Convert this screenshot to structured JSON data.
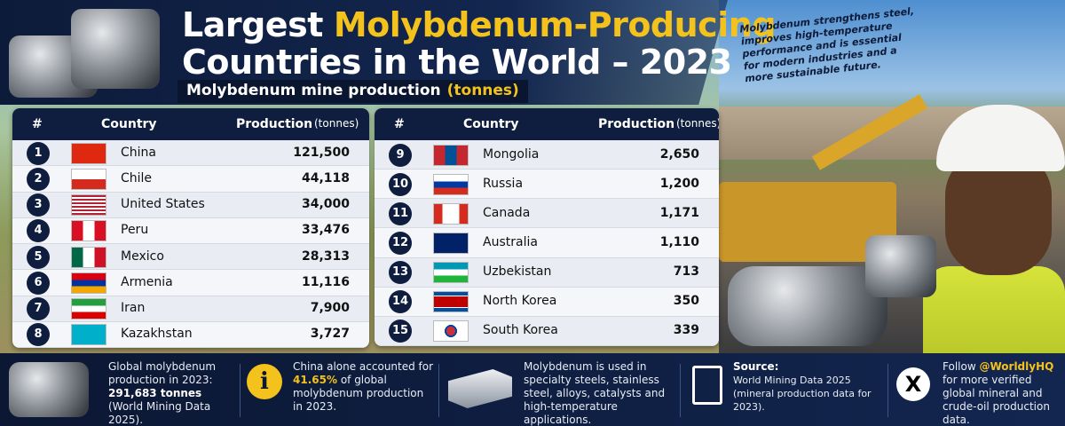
{
  "header": {
    "title_line1": [
      "Largest",
      "Molybdenum-Producing"
    ],
    "title_line2": "Countries in the World – 2023",
    "subtitle": [
      "Molybdenum mine production",
      "(tonnes)"
    ],
    "note": "Molybdenum strengthens steel, improves high-temperature performance and is essential for modern industries and a more sustainable future."
  },
  "tables": [
    {
      "columns": [
        "#",
        "Country",
        "Production",
        "(tonnes)"
      ],
      "rows": [
        [
          "1",
          "China",
          "121,500"
        ],
        [
          "2",
          "Chile",
          "44,118"
        ],
        [
          "3",
          "United States",
          "34,000"
        ],
        [
          "4",
          "Peru",
          "33,476"
        ],
        [
          "5",
          "Mexico",
          "28,313"
        ],
        [
          "6",
          "Armenia",
          "11,116"
        ],
        [
          "7",
          "Iran",
          "7,900"
        ],
        [
          "8",
          "Kazakhstan",
          "3,727"
        ]
      ]
    },
    {
      "columns": [
        "#",
        "Country",
        "Production",
        "(tonnes)"
      ],
      "rows": [
        [
          "9",
          "Mongolia",
          "2,650"
        ],
        [
          "10",
          "Russia",
          "1,200"
        ],
        [
          "11",
          "Canada",
          "1,171"
        ],
        [
          "12",
          "Australia",
          "1,110"
        ],
        [
          "13",
          "Uzbekistan",
          "713"
        ],
        [
          "14",
          "North Korea",
          "350"
        ],
        [
          "15",
          "South Korea",
          "339"
        ]
      ]
    }
  ],
  "footer": [
    [
      "Global molybdenum production in 2023:",
      "291,683 tonnes",
      "(World Mining Data 2025)."
    ],
    [
      "China alone accounted for",
      "41.65%",
      "of global molybdenum production in 2023."
    ],
    [
      "Molybdenum is used in specialty steels, stainless steel, alloys, catalysts and high-temperature applications."
    ],
    [
      "Source:",
      "World Mining Data 2025 (mineral production data for 2023)."
    ],
    [
      "Follow",
      "@WorldlyHQ",
      "for more verified global mineral and crude-oil production data."
    ]
  ]
}
